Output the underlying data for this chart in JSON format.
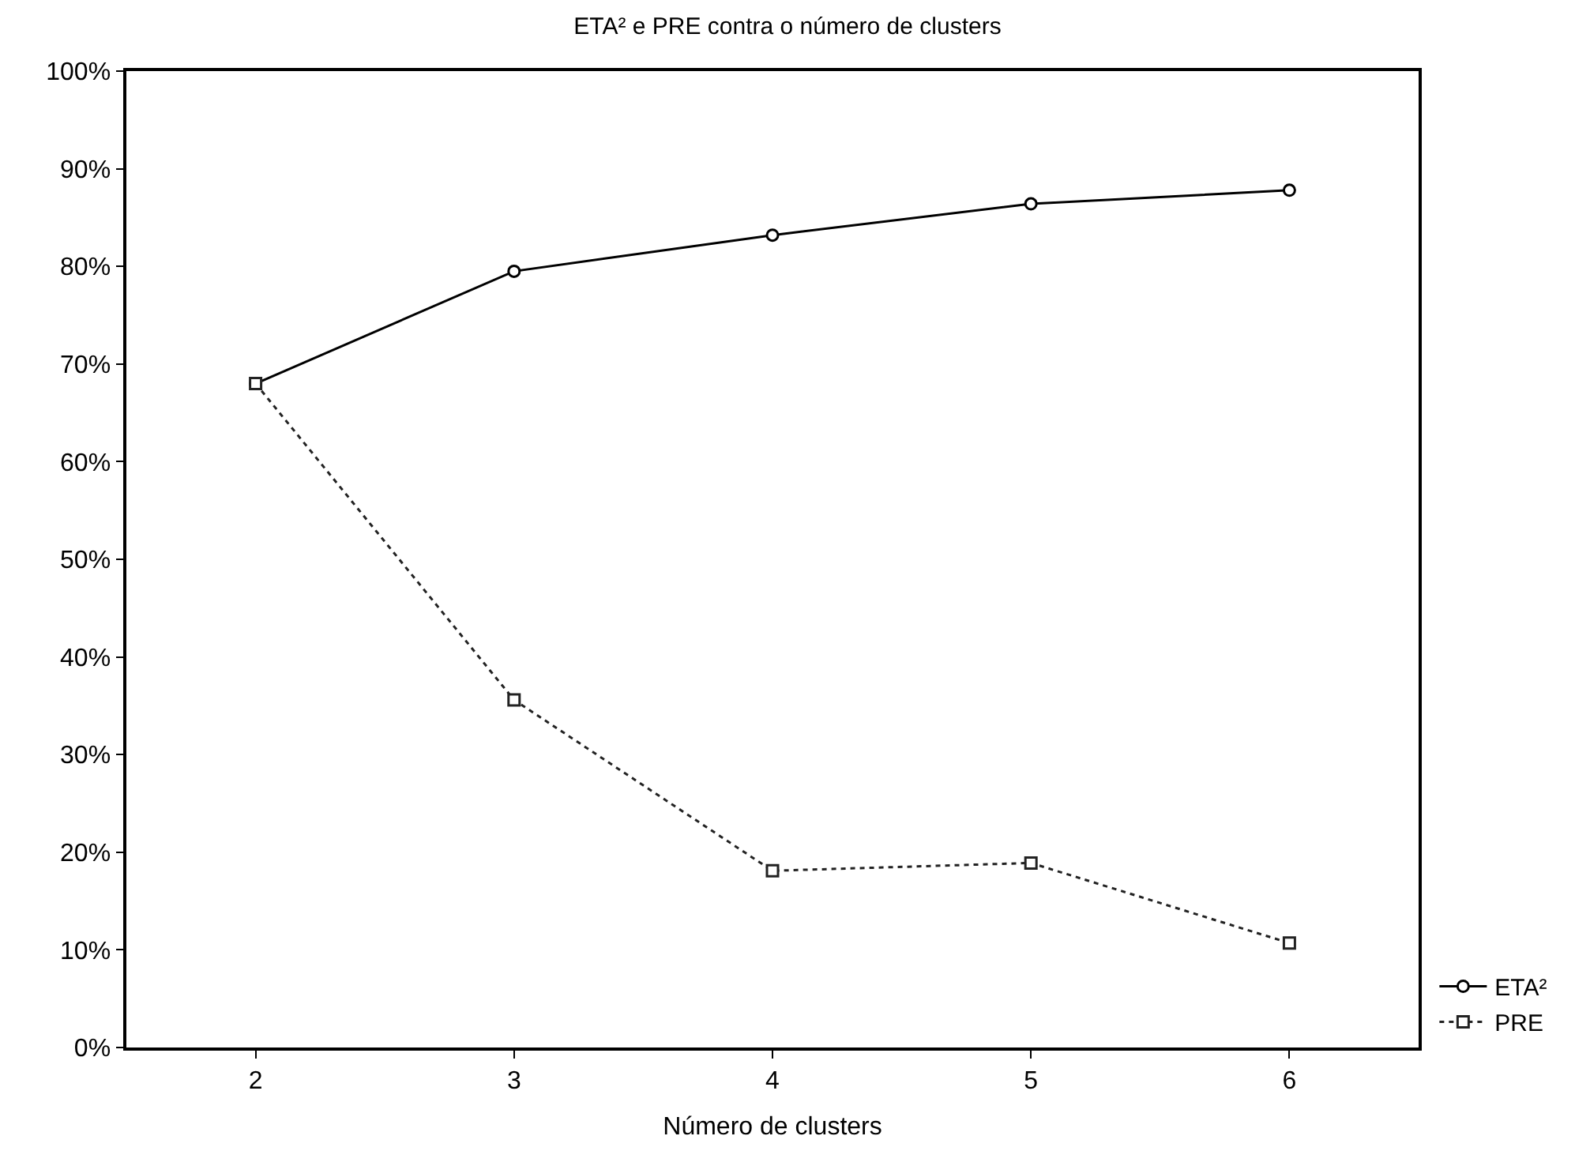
{
  "chart_data": {
    "type": "line",
    "title": "ETA² e PRE contra o número de clusters",
    "xlabel": "Número de clusters",
    "x": [
      2,
      3,
      4,
      5,
      6
    ],
    "xlim": [
      1.5,
      6.5
    ],
    "xticks": [
      2,
      3,
      4,
      5,
      6
    ],
    "ylim": [
      0,
      100
    ],
    "yticks": [
      {
        "value": 0,
        "label": "0%"
      },
      {
        "value": 10,
        "label": "10%"
      },
      {
        "value": 20,
        "label": "20%"
      },
      {
        "value": 30,
        "label": "30%"
      },
      {
        "value": 40,
        "label": "40%"
      },
      {
        "value": 50,
        "label": "50%"
      },
      {
        "value": 60,
        "label": "60%"
      },
      {
        "value": 70,
        "label": "70%"
      },
      {
        "value": 80,
        "label": "80%"
      },
      {
        "value": 90,
        "label": "90%"
      },
      {
        "value": 100,
        "label": "100%"
      }
    ],
    "legend": "bottom right",
    "series": [
      {
        "name": "ETA²",
        "color": "#000000",
        "marker": "circle",
        "line_style": "solid",
        "values": [
          68,
          79.5,
          83.2,
          86.4,
          87.8
        ]
      },
      {
        "name": "PRE",
        "color": "#222222",
        "marker": "square",
        "line_style": "dotted",
        "values": [
          68,
          35.6,
          18.1,
          18.9,
          10.7
        ]
      }
    ]
  }
}
